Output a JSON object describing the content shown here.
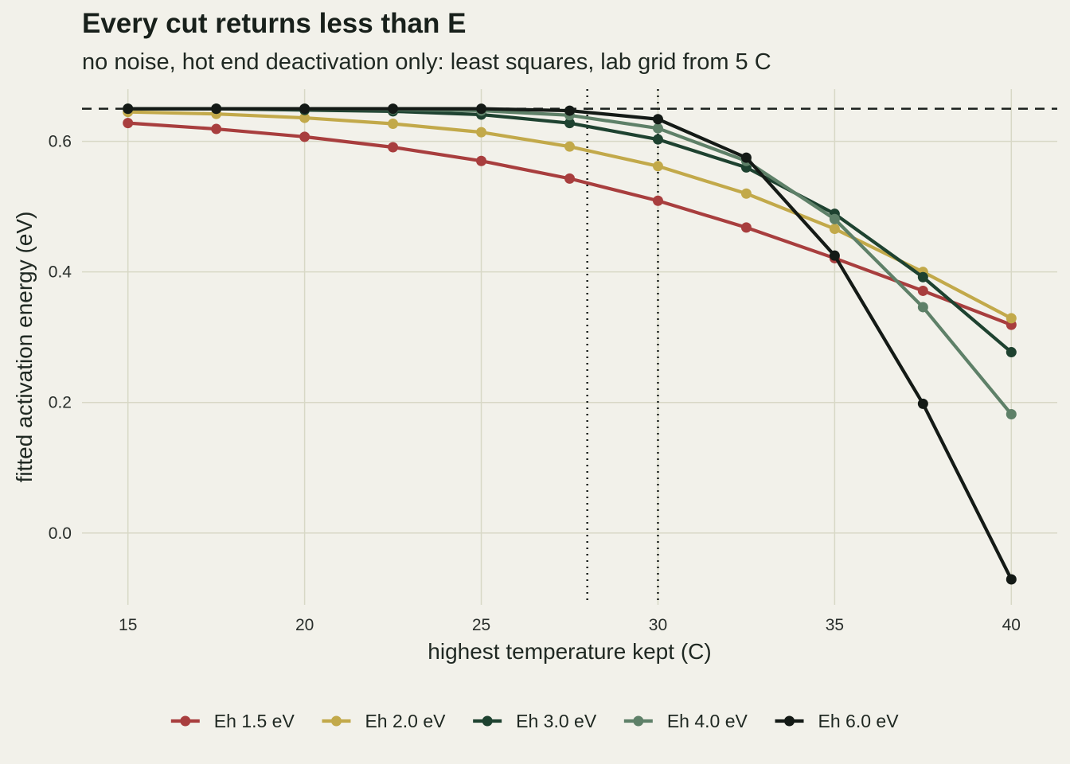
{
  "chart_data": {
    "type": "line",
    "title": "Every cut returns less than E",
    "subtitle": "no noise, hot end deactivation only: least squares, lab grid from 5 C",
    "xlabel": "highest temperature kept (C)",
    "ylabel": "fitted activation energy (eV)",
    "xlim": [
      13.7,
      41.3
    ],
    "ylim": [
      -0.11,
      0.68
    ],
    "x_ticks": [
      15,
      20,
      25,
      30,
      35,
      40
    ],
    "y_ticks": [
      0.0,
      0.2,
      0.4,
      0.6
    ],
    "x_tick_labels": [
      "15",
      "20",
      "25",
      "30",
      "35",
      "40"
    ],
    "y_tick_labels": [
      "0.0",
      "0.2",
      "0.4",
      "0.6"
    ],
    "grid": true,
    "legend_position": "bottom",
    "reference_hline": 0.65,
    "reference_vlines": [
      28,
      30
    ],
    "x": [
      15,
      17.5,
      20,
      22.5,
      25,
      27.5,
      30,
      32.5,
      35,
      37.5,
      40
    ],
    "series": [
      {
        "name": "Eh 1.5 eV",
        "color": "#a83e3e",
        "values": [
          0.628,
          0.619,
          0.607,
          0.591,
          0.57,
          0.543,
          0.509,
          0.468,
          0.421,
          0.371,
          0.319
        ]
      },
      {
        "name": "Eh 2.0 eV",
        "color": "#c2a94a",
        "values": [
          0.645,
          0.642,
          0.636,
          0.627,
          0.614,
          0.592,
          0.562,
          0.52,
          0.466,
          0.4,
          0.329
        ]
      },
      {
        "name": "Eh 3.0 eV",
        "color": "#1e4230",
        "values": [
          0.65,
          0.65,
          0.648,
          0.646,
          0.641,
          0.628,
          0.603,
          0.56,
          0.489,
          0.392,
          0.277
        ]
      },
      {
        "name": "Eh 4.0 eV",
        "color": "#5e8068",
        "values": [
          0.65,
          0.65,
          0.65,
          0.649,
          0.647,
          0.64,
          0.62,
          0.57,
          0.481,
          0.346,
          0.182
        ]
      },
      {
        "name": "Eh 6.0 eV",
        "color": "#141a16",
        "values": [
          0.65,
          0.65,
          0.65,
          0.65,
          0.65,
          0.647,
          0.634,
          0.575,
          0.425,
          0.198,
          -0.071
        ]
      }
    ]
  }
}
